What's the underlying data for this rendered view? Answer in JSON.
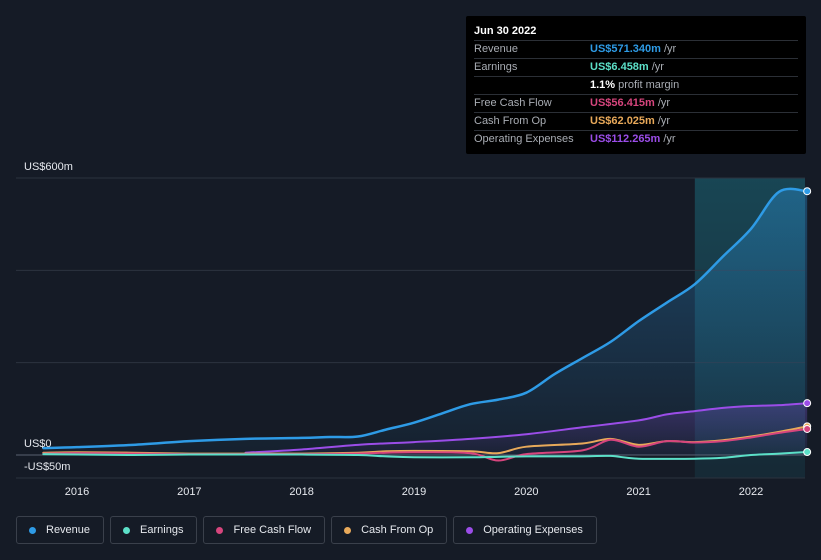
{
  "tooltip": {
    "date": "Jun 30 2022",
    "rows": [
      {
        "label": "Revenue",
        "value": "US$571.340m",
        "unit": "/yr",
        "color": "#2e9be6"
      },
      {
        "label": "Earnings",
        "value": "US$6.458m",
        "unit": "/yr",
        "color": "#5ce0c8"
      },
      {
        "label": "",
        "value": "1.1%",
        "unit": "profit margin",
        "color": "#ffffff"
      },
      {
        "label": "Free Cash Flow",
        "value": "US$56.415m",
        "unit": "/yr",
        "color": "#d6457d"
      },
      {
        "label": "Cash From Op",
        "value": "US$62.025m",
        "unit": "/yr",
        "color": "#e8a95a"
      },
      {
        "label": "Operating Expenses",
        "value": "US$112.265m",
        "unit": "/yr",
        "color": "#9b4de8"
      }
    ]
  },
  "legend": [
    {
      "label": "Revenue",
      "color": "#2e9be6"
    },
    {
      "label": "Earnings",
      "color": "#5ce0c8"
    },
    {
      "label": "Free Cash Flow",
      "color": "#d6457d"
    },
    {
      "label": "Cash From Op",
      "color": "#e8a95a"
    },
    {
      "label": "Operating Expenses",
      "color": "#9b4de8"
    }
  ],
  "chart_data": {
    "type": "line",
    "y_unit": "US$m",
    "ylim": [
      -50,
      600
    ],
    "y_axis_labels": [
      {
        "value": 600,
        "label": "US$600m"
      },
      {
        "value": 0,
        "label": "US$0"
      },
      {
        "value": -50,
        "label": "-US$50m"
      }
    ],
    "x_ticks": [
      "2016",
      "2017",
      "2018",
      "2019",
      "2020",
      "2021",
      "2022"
    ],
    "xlim": [
      2015.7,
      2022.5
    ],
    "highlight_start": 2021.5,
    "grid": true,
    "series": [
      {
        "name": "Revenue",
        "color": "#2e9be6",
        "fill": true,
        "x": [
          2015.7,
          2016.0,
          2016.5,
          2017.0,
          2017.5,
          2018.0,
          2018.25,
          2018.5,
          2018.75,
          2019.0,
          2019.25,
          2019.5,
          2019.75,
          2020.0,
          2020.25,
          2020.5,
          2020.75,
          2021.0,
          2021.25,
          2021.5,
          2021.75,
          2022.0,
          2022.25,
          2022.5
        ],
        "values": [
          15,
          17,
          22,
          30,
          35,
          37,
          39,
          40,
          55,
          70,
          90,
          110,
          120,
          135,
          175,
          210,
          245,
          290,
          330,
          370,
          430,
          490,
          570,
          571.34
        ]
      },
      {
        "name": "Operating Expenses",
        "color": "#9b4de8",
        "fill": true,
        "x": [
          2017.5,
          2018.0,
          2018.5,
          2019.0,
          2019.5,
          2020.0,
          2020.5,
          2021.0,
          2021.25,
          2021.5,
          2021.75,
          2022.0,
          2022.25,
          2022.5
        ],
        "values": [
          5,
          12,
          22,
          28,
          35,
          45,
          60,
          75,
          88,
          95,
          102,
          106,
          108,
          112.265
        ]
      },
      {
        "name": "Cash From Op",
        "color": "#e8a95a",
        "fill": false,
        "x": [
          2015.7,
          2016.0,
          2016.5,
          2017.0,
          2017.5,
          2018.0,
          2018.5,
          2018.75,
          2019.0,
          2019.5,
          2019.75,
          2020.0,
          2020.5,
          2020.75,
          2021.0,
          2021.25,
          2021.5,
          2021.75,
          2022.0,
          2022.25,
          2022.5
        ],
        "values": [
          5,
          6,
          5,
          3,
          3,
          3,
          5,
          8,
          9,
          8,
          4,
          18,
          25,
          35,
          22,
          30,
          28,
          32,
          40,
          50,
          62.025
        ]
      },
      {
        "name": "Free Cash Flow",
        "color": "#d6457d",
        "fill": false,
        "x": [
          2015.7,
          2016.0,
          2016.5,
          2017.0,
          2017.5,
          2018.0,
          2018.5,
          2018.75,
          2019.0,
          2019.5,
          2019.75,
          2020.0,
          2020.5,
          2020.75,
          2021.0,
          2021.25,
          2021.5,
          2021.75,
          2022.0,
          2022.25,
          2022.5
        ],
        "values": [
          3,
          4,
          3,
          2,
          2,
          2,
          3,
          5,
          6,
          4,
          -12,
          2,
          10,
          33,
          18,
          30,
          27,
          30,
          38,
          48,
          56.415
        ]
      },
      {
        "name": "Earnings",
        "color": "#5ce0c8",
        "fill": false,
        "x": [
          2015.7,
          2016.0,
          2016.5,
          2017.0,
          2017.5,
          2018.0,
          2018.5,
          2018.75,
          2019.0,
          2019.5,
          2019.75,
          2020.0,
          2020.5,
          2020.75,
          2021.0,
          2021.5,
          2021.75,
          2022.0,
          2022.25,
          2022.5
        ],
        "values": [
          2,
          1,
          0,
          1,
          1,
          1,
          0,
          -3,
          -5,
          -5,
          -4,
          -3,
          -3,
          -2,
          -8,
          -8,
          -6,
          0,
          3,
          6.458
        ]
      }
    ]
  }
}
